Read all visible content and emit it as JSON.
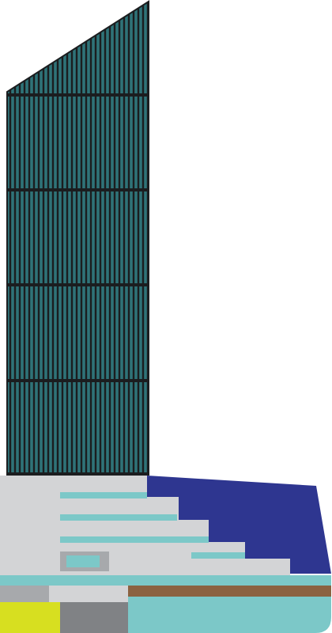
{
  "colors": {
    "background": "#ffffff",
    "tower_glass": "#2f7378",
    "tower_mullion": "#1b1d1f",
    "tower_band": "#1b1d1f",
    "podium_grey": "#d3d4d6",
    "podium_stripe": "#7cc8c8",
    "roof_blue": "#2e3690",
    "base_teal": "#7cc8c8",
    "base_brown": "#8b6241",
    "base_yellow": "#d7df20",
    "base_dark_grey": "#808285",
    "base_mid_grey": "#a7a9ac",
    "base_light_grey": "#d3d4d6"
  }
}
